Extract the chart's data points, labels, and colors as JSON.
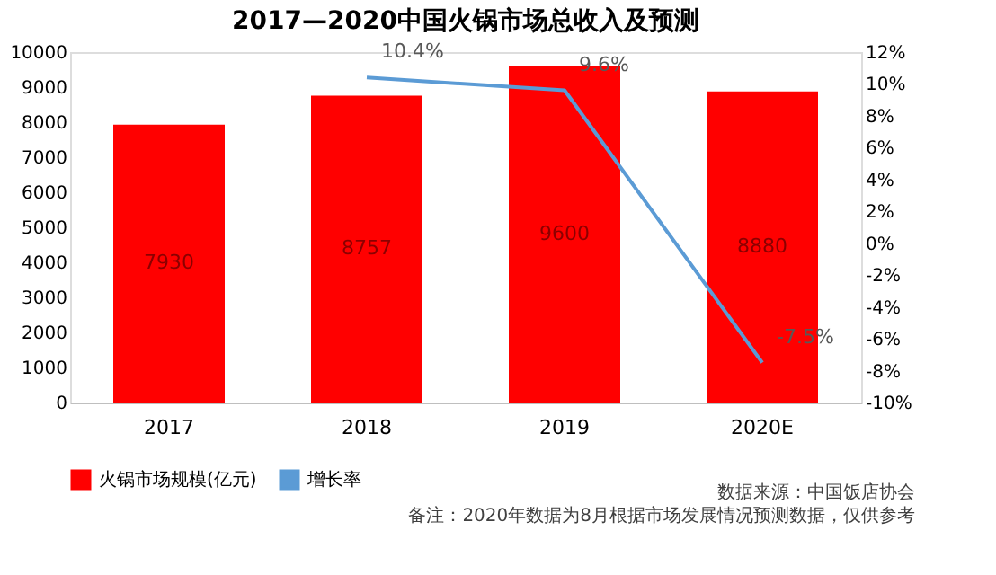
{
  "chart_data": {
    "type": "bar",
    "title": "2017—2020中国火锅市场总收入及预测",
    "categories": [
      "2017",
      "2018",
      "2019",
      "2020E"
    ],
    "series": [
      {
        "name": "火锅市场规模(亿元)",
        "color": "#ff0000",
        "values": [
          7930,
          8757,
          9600,
          8880
        ],
        "value_labels": [
          "7930",
          "8757",
          "9600",
          "8880"
        ]
      },
      {
        "name": "增长率",
        "type": "line",
        "axis": "y2",
        "color": "#5b9bd5",
        "values": [
          null,
          10.4,
          9.6,
          -7.5
        ],
        "value_labels": [
          null,
          "10.4%",
          "9.6%",
          "-7.5%"
        ]
      }
    ],
    "ylim": [
      0,
      10000
    ],
    "yticks": [
      0,
      1000,
      2000,
      3000,
      4000,
      5000,
      6000,
      7000,
      8000,
      9000,
      10000
    ],
    "y2lim": [
      -10,
      12
    ],
    "y2ticks": [
      {
        "value": -10,
        "label": "-10%"
      },
      {
        "value": -8,
        "label": "-8%"
      },
      {
        "value": -6,
        "label": "-6%"
      },
      {
        "value": -4,
        "label": "-4%"
      },
      {
        "value": -2,
        "label": "-2%"
      },
      {
        "value": 0,
        "label": "0%"
      },
      {
        "value": 2,
        "label": "2%"
      },
      {
        "value": 4,
        "label": "4%"
      },
      {
        "value": 6,
        "label": "6%"
      },
      {
        "value": 8,
        "label": "8%"
      },
      {
        "value": 10,
        "label": "10%"
      },
      {
        "value": 12,
        "label": "12%"
      }
    ],
    "grid": false,
    "legend": "bottom",
    "annotations": [
      "数据来源：中国饭店协会",
      "备注：2020年数据为8月根据市场发展情况预测数据，仅供参考"
    ]
  }
}
